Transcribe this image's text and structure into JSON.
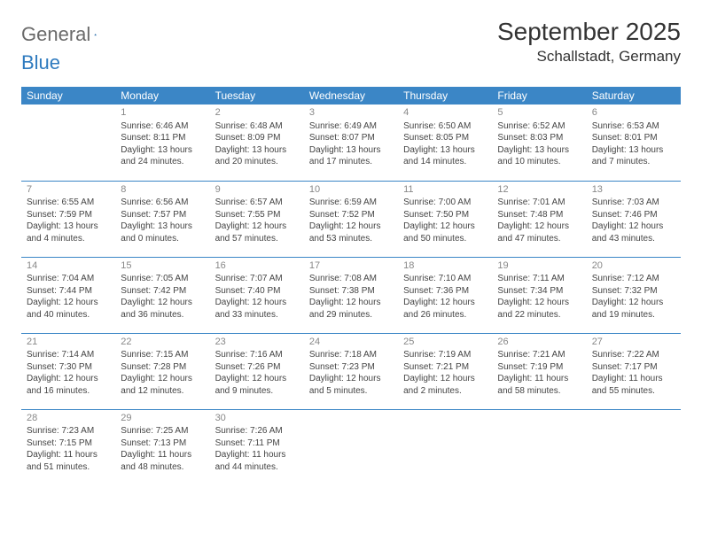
{
  "logo": {
    "word1": "General",
    "word2": "Blue"
  },
  "header": {
    "month": "September 2025",
    "location": "Schallstadt, Germany"
  },
  "colors": {
    "header_bg": "#3b86c6",
    "header_text": "#ffffff",
    "logo_gray": "#6a6a6a",
    "logo_blue": "#2f7bbf",
    "daynum": "#888888",
    "cell_text": "#444444",
    "row_border": "#3b86c6",
    "page_bg": "#ffffff"
  },
  "dayHeaders": [
    "Sunday",
    "Monday",
    "Tuesday",
    "Wednesday",
    "Thursday",
    "Friday",
    "Saturday"
  ],
  "weeks": [
    [
      null,
      {
        "n": "1",
        "sr": "Sunrise: 6:46 AM",
        "ss": "Sunset: 8:11 PM",
        "dl": "Daylight: 13 hours and 24 minutes."
      },
      {
        "n": "2",
        "sr": "Sunrise: 6:48 AM",
        "ss": "Sunset: 8:09 PM",
        "dl": "Daylight: 13 hours and 20 minutes."
      },
      {
        "n": "3",
        "sr": "Sunrise: 6:49 AM",
        "ss": "Sunset: 8:07 PM",
        "dl": "Daylight: 13 hours and 17 minutes."
      },
      {
        "n": "4",
        "sr": "Sunrise: 6:50 AM",
        "ss": "Sunset: 8:05 PM",
        "dl": "Daylight: 13 hours and 14 minutes."
      },
      {
        "n": "5",
        "sr": "Sunrise: 6:52 AM",
        "ss": "Sunset: 8:03 PM",
        "dl": "Daylight: 13 hours and 10 minutes."
      },
      {
        "n": "6",
        "sr": "Sunrise: 6:53 AM",
        "ss": "Sunset: 8:01 PM",
        "dl": "Daylight: 13 hours and 7 minutes."
      }
    ],
    [
      {
        "n": "7",
        "sr": "Sunrise: 6:55 AM",
        "ss": "Sunset: 7:59 PM",
        "dl": "Daylight: 13 hours and 4 minutes."
      },
      {
        "n": "8",
        "sr": "Sunrise: 6:56 AM",
        "ss": "Sunset: 7:57 PM",
        "dl": "Daylight: 13 hours and 0 minutes."
      },
      {
        "n": "9",
        "sr": "Sunrise: 6:57 AM",
        "ss": "Sunset: 7:55 PM",
        "dl": "Daylight: 12 hours and 57 minutes."
      },
      {
        "n": "10",
        "sr": "Sunrise: 6:59 AM",
        "ss": "Sunset: 7:52 PM",
        "dl": "Daylight: 12 hours and 53 minutes."
      },
      {
        "n": "11",
        "sr": "Sunrise: 7:00 AM",
        "ss": "Sunset: 7:50 PM",
        "dl": "Daylight: 12 hours and 50 minutes."
      },
      {
        "n": "12",
        "sr": "Sunrise: 7:01 AM",
        "ss": "Sunset: 7:48 PM",
        "dl": "Daylight: 12 hours and 47 minutes."
      },
      {
        "n": "13",
        "sr": "Sunrise: 7:03 AM",
        "ss": "Sunset: 7:46 PM",
        "dl": "Daylight: 12 hours and 43 minutes."
      }
    ],
    [
      {
        "n": "14",
        "sr": "Sunrise: 7:04 AM",
        "ss": "Sunset: 7:44 PM",
        "dl": "Daylight: 12 hours and 40 minutes."
      },
      {
        "n": "15",
        "sr": "Sunrise: 7:05 AM",
        "ss": "Sunset: 7:42 PM",
        "dl": "Daylight: 12 hours and 36 minutes."
      },
      {
        "n": "16",
        "sr": "Sunrise: 7:07 AM",
        "ss": "Sunset: 7:40 PM",
        "dl": "Daylight: 12 hours and 33 minutes."
      },
      {
        "n": "17",
        "sr": "Sunrise: 7:08 AM",
        "ss": "Sunset: 7:38 PM",
        "dl": "Daylight: 12 hours and 29 minutes."
      },
      {
        "n": "18",
        "sr": "Sunrise: 7:10 AM",
        "ss": "Sunset: 7:36 PM",
        "dl": "Daylight: 12 hours and 26 minutes."
      },
      {
        "n": "19",
        "sr": "Sunrise: 7:11 AM",
        "ss": "Sunset: 7:34 PM",
        "dl": "Daylight: 12 hours and 22 minutes."
      },
      {
        "n": "20",
        "sr": "Sunrise: 7:12 AM",
        "ss": "Sunset: 7:32 PM",
        "dl": "Daylight: 12 hours and 19 minutes."
      }
    ],
    [
      {
        "n": "21",
        "sr": "Sunrise: 7:14 AM",
        "ss": "Sunset: 7:30 PM",
        "dl": "Daylight: 12 hours and 16 minutes."
      },
      {
        "n": "22",
        "sr": "Sunrise: 7:15 AM",
        "ss": "Sunset: 7:28 PM",
        "dl": "Daylight: 12 hours and 12 minutes."
      },
      {
        "n": "23",
        "sr": "Sunrise: 7:16 AM",
        "ss": "Sunset: 7:26 PM",
        "dl": "Daylight: 12 hours and 9 minutes."
      },
      {
        "n": "24",
        "sr": "Sunrise: 7:18 AM",
        "ss": "Sunset: 7:23 PM",
        "dl": "Daylight: 12 hours and 5 minutes."
      },
      {
        "n": "25",
        "sr": "Sunrise: 7:19 AM",
        "ss": "Sunset: 7:21 PM",
        "dl": "Daylight: 12 hours and 2 minutes."
      },
      {
        "n": "26",
        "sr": "Sunrise: 7:21 AM",
        "ss": "Sunset: 7:19 PM",
        "dl": "Daylight: 11 hours and 58 minutes."
      },
      {
        "n": "27",
        "sr": "Sunrise: 7:22 AM",
        "ss": "Sunset: 7:17 PM",
        "dl": "Daylight: 11 hours and 55 minutes."
      }
    ],
    [
      {
        "n": "28",
        "sr": "Sunrise: 7:23 AM",
        "ss": "Sunset: 7:15 PM",
        "dl": "Daylight: 11 hours and 51 minutes."
      },
      {
        "n": "29",
        "sr": "Sunrise: 7:25 AM",
        "ss": "Sunset: 7:13 PM",
        "dl": "Daylight: 11 hours and 48 minutes."
      },
      {
        "n": "30",
        "sr": "Sunrise: 7:26 AM",
        "ss": "Sunset: 7:11 PM",
        "dl": "Daylight: 11 hours and 44 minutes."
      },
      null,
      null,
      null,
      null
    ]
  ]
}
